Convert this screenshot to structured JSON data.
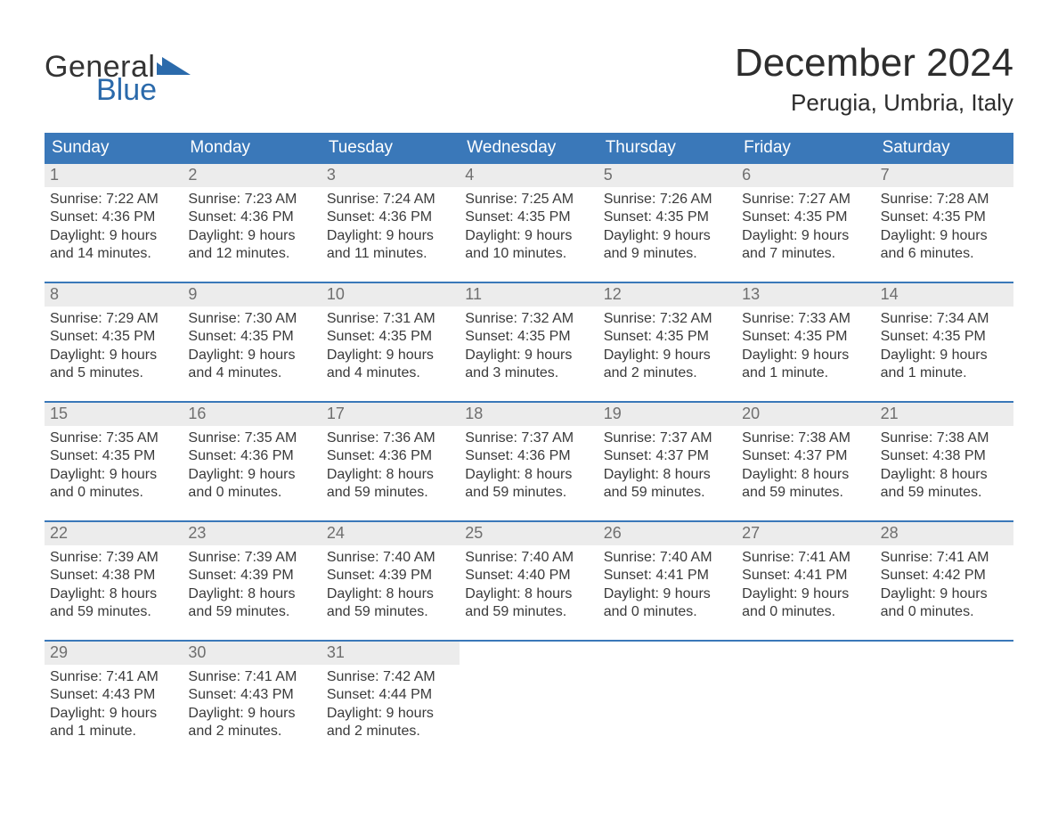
{
  "logo": {
    "line1": "General",
    "line2": "Blue",
    "tri_color": "#2b6aab",
    "text_color_top": "#333333",
    "text_color_bottom": "#2b6aab"
  },
  "title": "December 2024",
  "subtitle": "Perugia, Umbria, Italy",
  "colors": {
    "header_bg": "#3a78b9",
    "header_text": "#ffffff",
    "daynum_bg": "#ececec",
    "daynum_text": "#6f6f6f",
    "body_text": "#3a3a3a",
    "week_border": "#3a78b9",
    "background": "#ffffff"
  },
  "typography": {
    "title_fontsize": 44,
    "subtitle_fontsize": 26,
    "dow_fontsize": 19,
    "daynum_fontsize": 18,
    "body_fontsize": 16,
    "logo_fontsize": 34
  },
  "days_of_week": [
    "Sunday",
    "Monday",
    "Tuesday",
    "Wednesday",
    "Thursday",
    "Friday",
    "Saturday"
  ],
  "weeks": [
    [
      {
        "n": "1",
        "sunrise": "Sunrise: 7:22 AM",
        "sunset": "Sunset: 4:36 PM",
        "d1": "Daylight: 9 hours",
        "d2": "and 14 minutes."
      },
      {
        "n": "2",
        "sunrise": "Sunrise: 7:23 AM",
        "sunset": "Sunset: 4:36 PM",
        "d1": "Daylight: 9 hours",
        "d2": "and 12 minutes."
      },
      {
        "n": "3",
        "sunrise": "Sunrise: 7:24 AM",
        "sunset": "Sunset: 4:36 PM",
        "d1": "Daylight: 9 hours",
        "d2": "and 11 minutes."
      },
      {
        "n": "4",
        "sunrise": "Sunrise: 7:25 AM",
        "sunset": "Sunset: 4:35 PM",
        "d1": "Daylight: 9 hours",
        "d2": "and 10 minutes."
      },
      {
        "n": "5",
        "sunrise": "Sunrise: 7:26 AM",
        "sunset": "Sunset: 4:35 PM",
        "d1": "Daylight: 9 hours",
        "d2": "and 9 minutes."
      },
      {
        "n": "6",
        "sunrise": "Sunrise: 7:27 AM",
        "sunset": "Sunset: 4:35 PM",
        "d1": "Daylight: 9 hours",
        "d2": "and 7 minutes."
      },
      {
        "n": "7",
        "sunrise": "Sunrise: 7:28 AM",
        "sunset": "Sunset: 4:35 PM",
        "d1": "Daylight: 9 hours",
        "d2": "and 6 minutes."
      }
    ],
    [
      {
        "n": "8",
        "sunrise": "Sunrise: 7:29 AM",
        "sunset": "Sunset: 4:35 PM",
        "d1": "Daylight: 9 hours",
        "d2": "and 5 minutes."
      },
      {
        "n": "9",
        "sunrise": "Sunrise: 7:30 AM",
        "sunset": "Sunset: 4:35 PM",
        "d1": "Daylight: 9 hours",
        "d2": "and 4 minutes."
      },
      {
        "n": "10",
        "sunrise": "Sunrise: 7:31 AM",
        "sunset": "Sunset: 4:35 PM",
        "d1": "Daylight: 9 hours",
        "d2": "and 4 minutes."
      },
      {
        "n": "11",
        "sunrise": "Sunrise: 7:32 AM",
        "sunset": "Sunset: 4:35 PM",
        "d1": "Daylight: 9 hours",
        "d2": "and 3 minutes."
      },
      {
        "n": "12",
        "sunrise": "Sunrise: 7:32 AM",
        "sunset": "Sunset: 4:35 PM",
        "d1": "Daylight: 9 hours",
        "d2": "and 2 minutes."
      },
      {
        "n": "13",
        "sunrise": "Sunrise: 7:33 AM",
        "sunset": "Sunset: 4:35 PM",
        "d1": "Daylight: 9 hours",
        "d2": "and 1 minute."
      },
      {
        "n": "14",
        "sunrise": "Sunrise: 7:34 AM",
        "sunset": "Sunset: 4:35 PM",
        "d1": "Daylight: 9 hours",
        "d2": "and 1 minute."
      }
    ],
    [
      {
        "n": "15",
        "sunrise": "Sunrise: 7:35 AM",
        "sunset": "Sunset: 4:35 PM",
        "d1": "Daylight: 9 hours",
        "d2": "and 0 minutes."
      },
      {
        "n": "16",
        "sunrise": "Sunrise: 7:35 AM",
        "sunset": "Sunset: 4:36 PM",
        "d1": "Daylight: 9 hours",
        "d2": "and 0 minutes."
      },
      {
        "n": "17",
        "sunrise": "Sunrise: 7:36 AM",
        "sunset": "Sunset: 4:36 PM",
        "d1": "Daylight: 8 hours",
        "d2": "and 59 minutes."
      },
      {
        "n": "18",
        "sunrise": "Sunrise: 7:37 AM",
        "sunset": "Sunset: 4:36 PM",
        "d1": "Daylight: 8 hours",
        "d2": "and 59 minutes."
      },
      {
        "n": "19",
        "sunrise": "Sunrise: 7:37 AM",
        "sunset": "Sunset: 4:37 PM",
        "d1": "Daylight: 8 hours",
        "d2": "and 59 minutes."
      },
      {
        "n": "20",
        "sunrise": "Sunrise: 7:38 AM",
        "sunset": "Sunset: 4:37 PM",
        "d1": "Daylight: 8 hours",
        "d2": "and 59 minutes."
      },
      {
        "n": "21",
        "sunrise": "Sunrise: 7:38 AM",
        "sunset": "Sunset: 4:38 PM",
        "d1": "Daylight: 8 hours",
        "d2": "and 59 minutes."
      }
    ],
    [
      {
        "n": "22",
        "sunrise": "Sunrise: 7:39 AM",
        "sunset": "Sunset: 4:38 PM",
        "d1": "Daylight: 8 hours",
        "d2": "and 59 minutes."
      },
      {
        "n": "23",
        "sunrise": "Sunrise: 7:39 AM",
        "sunset": "Sunset: 4:39 PM",
        "d1": "Daylight: 8 hours",
        "d2": "and 59 minutes."
      },
      {
        "n": "24",
        "sunrise": "Sunrise: 7:40 AM",
        "sunset": "Sunset: 4:39 PM",
        "d1": "Daylight: 8 hours",
        "d2": "and 59 minutes."
      },
      {
        "n": "25",
        "sunrise": "Sunrise: 7:40 AM",
        "sunset": "Sunset: 4:40 PM",
        "d1": "Daylight: 8 hours",
        "d2": "and 59 minutes."
      },
      {
        "n": "26",
        "sunrise": "Sunrise: 7:40 AM",
        "sunset": "Sunset: 4:41 PM",
        "d1": "Daylight: 9 hours",
        "d2": "and 0 minutes."
      },
      {
        "n": "27",
        "sunrise": "Sunrise: 7:41 AM",
        "sunset": "Sunset: 4:41 PM",
        "d1": "Daylight: 9 hours",
        "d2": "and 0 minutes."
      },
      {
        "n": "28",
        "sunrise": "Sunrise: 7:41 AM",
        "sunset": "Sunset: 4:42 PM",
        "d1": "Daylight: 9 hours",
        "d2": "and 0 minutes."
      }
    ],
    [
      {
        "n": "29",
        "sunrise": "Sunrise: 7:41 AM",
        "sunset": "Sunset: 4:43 PM",
        "d1": "Daylight: 9 hours",
        "d2": "and 1 minute."
      },
      {
        "n": "30",
        "sunrise": "Sunrise: 7:41 AM",
        "sunset": "Sunset: 4:43 PM",
        "d1": "Daylight: 9 hours",
        "d2": "and 2 minutes."
      },
      {
        "n": "31",
        "sunrise": "Sunrise: 7:42 AM",
        "sunset": "Sunset: 4:44 PM",
        "d1": "Daylight: 9 hours",
        "d2": "and 2 minutes."
      },
      null,
      null,
      null,
      null
    ]
  ]
}
